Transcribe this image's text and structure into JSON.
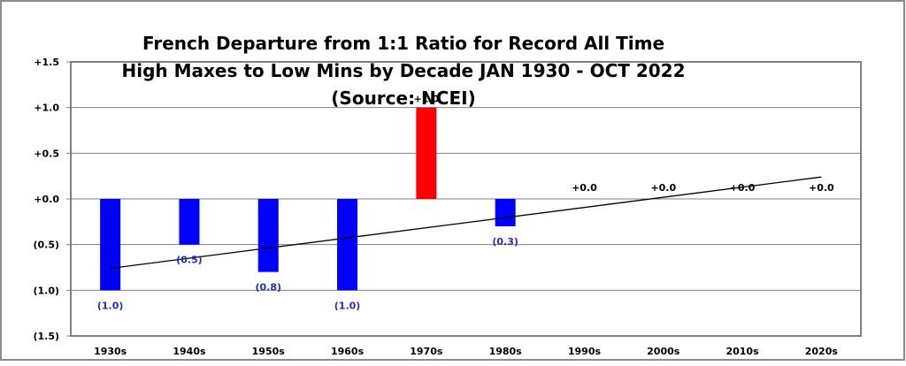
{
  "chart_data": {
    "type": "bar",
    "title_lines": [
      "French Departure from 1:1 Ratio for Record All Time",
      "High Maxes to Low Mins by Decade JAN 1930 - OCT 2022",
      "(Source: NCEI)"
    ],
    "categories": [
      "1930s",
      "1940s",
      "1950s",
      "1960s",
      "1970s",
      "1980s",
      "1990s",
      "2000s",
      "2010s",
      "2020s"
    ],
    "values": [
      -1.0,
      -0.5,
      -0.8,
      -1.0,
      1.0,
      -0.3,
      0.0,
      0.0,
      0.0,
      0.0
    ],
    "data_labels": [
      "(1.0)",
      "(0.5)",
      "(0.8)",
      "(1.0)",
      "+1.0",
      "(0.3)",
      "+0.0",
      "+0.0",
      "+0.0",
      "+0.0"
    ],
    "y_ticks": [
      1.5,
      1.0,
      0.5,
      0.0,
      -0.5,
      -1.0,
      -1.5
    ],
    "y_tick_labels": [
      "+1.5",
      "+1.0",
      "+0.5",
      "+0.0",
      "(0.5)",
      "(1.0)",
      "(1.5)"
    ],
    "ylim": [
      -1.5,
      1.5
    ],
    "grid": true,
    "trendline": {
      "start": -0.76,
      "end": 0.24
    },
    "colors": {
      "negative": "#0000ff",
      "positive": "#ff0000",
      "negative_label": "#1f2fbf",
      "positive_label": "#000000",
      "gridline": "#808080",
      "trendline": "#000000",
      "frame": "#8c8c8c"
    }
  }
}
